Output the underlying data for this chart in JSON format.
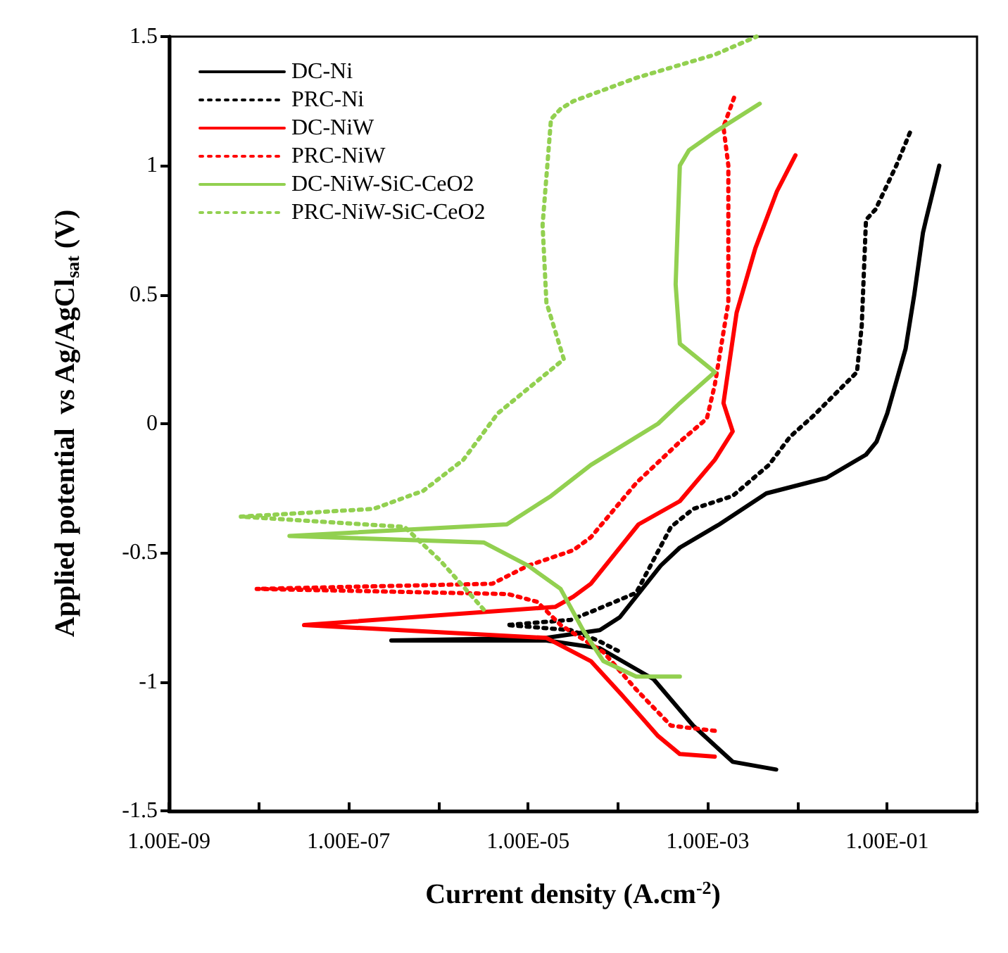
{
  "chart_data": {
    "type": "line",
    "xlabel": "Current density (A.cm$^{-2}$)",
    "ylabel": "Applied potential  vs Ag/AgCl$_{sat}$ (V)",
    "log": "x",
    "xlim": [
      1e-09,
      1
    ],
    "ylim": [
      -1.5,
      1.5
    ],
    "xticks": [
      {
        "value": 1e-09,
        "label": "1.00E-09"
      },
      {
        "value": 1e-08,
        "label": null
      },
      {
        "value": 1e-07,
        "label": "1.00E-07"
      },
      {
        "value": 1e-06,
        "label": null
      },
      {
        "value": 1e-05,
        "label": "1.00E-05"
      },
      {
        "value": 0.0001,
        "label": null
      },
      {
        "value": 0.001,
        "label": "1.00E-03"
      },
      {
        "value": 0.01,
        "label": null
      },
      {
        "value": 0.1,
        "label": "1.00E-01"
      },
      {
        "value": 1,
        "label": null
      }
    ],
    "yticks": [
      -1.5,
      -1,
      -0.5,
      0,
      0.5,
      1,
      1.5
    ],
    "grid": false,
    "legend": "top left",
    "marker": "none",
    "series": [
      {
        "name": "DC-Ni",
        "color": "#000000",
        "line_style": "solid",
        "x": [
          0.0058,
          0.0019,
          0.00069,
          0.00025,
          6.3e-05,
          1.6e-05,
          3e-07,
          1.6e-05,
          6.3e-05,
          0.000105,
          0.0003,
          0.00049,
          0.00135,
          0.0045,
          0.021,
          0.058,
          0.076,
          0.1,
          0.16,
          0.2,
          0.25,
          0.27,
          0.38
        ],
        "values": [
          -1.34,
          -1.31,
          -1.17,
          -0.99,
          -0.87,
          -0.84,
          -0.84,
          -0.83,
          -0.8,
          -0.75,
          -0.55,
          -0.48,
          -0.39,
          -0.27,
          -0.21,
          -0.12,
          -0.07,
          0.04,
          0.29,
          0.5,
          0.74,
          0.79,
          1.0
        ]
      },
      {
        "name": "PRC-Ni",
        "color": "#000000",
        "line_style": "dotted",
        "x": [
          0.0001,
          6e-05,
          3e-05,
          5.8e-06,
          3e-05,
          5.8e-05,
          0.00016,
          0.00039,
          0.00069,
          0.0019,
          0.0048,
          0.0083,
          0.015,
          0.046,
          0.052,
          0.058,
          0.074,
          0.126,
          0.18
        ],
        "values": [
          -0.88,
          -0.84,
          -0.8,
          -0.78,
          -0.76,
          -0.72,
          -0.655,
          -0.4,
          -0.33,
          -0.28,
          -0.16,
          -0.05,
          0.03,
          0.2,
          0.38,
          0.79,
          0.83,
          1.0,
          1.13
        ]
      },
      {
        "name": "DC-NiW",
        "color": "#ff0000",
        "line_style": "solid",
        "x": [
          0.0012,
          0.00049,
          0.00028,
          0.00011,
          5e-05,
          1.6e-05,
          3.2e-08,
          2e-05,
          3.2e-05,
          5e-05,
          0.00017,
          0.00049,
          0.0012,
          0.0019,
          0.0015,
          0.0021,
          0.0034,
          0.0059,
          0.0095
        ],
        "values": [
          -1.29,
          -1.28,
          -1.21,
          -1.05,
          -0.92,
          -0.83,
          -0.78,
          -0.71,
          -0.67,
          -0.62,
          -0.39,
          -0.3,
          -0.14,
          -0.03,
          0.08,
          0.43,
          0.68,
          0.9,
          1.04
        ]
      },
      {
        "name": "PRC-NiW",
        "color": "#ff0000",
        "line_style": "dotted",
        "x": [
          0.0012,
          0.00039,
          0.00016,
          6.9e-05,
          2.3e-05,
          1.26e-05,
          6e-06,
          9.5e-09,
          4e-06,
          1e-05,
          3.2e-05,
          5e-05,
          0.00016,
          0.00049,
          0.00098,
          0.0012,
          0.0017,
          0.0017,
          0.0015,
          0.002
        ],
        "values": [
          -1.19,
          -1.17,
          -1.03,
          -0.885,
          -0.78,
          -0.69,
          -0.66,
          -0.64,
          -0.62,
          -0.55,
          -0.49,
          -0.44,
          -0.23,
          -0.07,
          0.02,
          0.15,
          0.47,
          1.0,
          1.15,
          1.27
        ]
      },
      {
        "name": "DC-NiW-SiC-CeO2",
        "color": "#92d050",
        "line_style": "solid",
        "x": [
          0.00049,
          0.00016,
          6.9e-05,
          4.1e-05,
          2.3e-05,
          1e-05,
          3.2e-06,
          2.2e-08,
          5.8e-06,
          1.8e-05,
          5e-05,
          0.00028,
          0.00049,
          0.0012,
          0.00049,
          0.00044,
          0.00049,
          0.00062,
          0.0012,
          0.0038
        ],
        "values": [
          -0.98,
          -0.98,
          -0.92,
          -0.8,
          -0.64,
          -0.55,
          -0.46,
          -0.435,
          -0.39,
          -0.28,
          -0.16,
          0.0,
          0.08,
          0.2,
          0.31,
          0.54,
          1.0,
          1.06,
          1.13,
          1.24
        ]
      },
      {
        "name": "PRC-NiW-SiC-CeO2",
        "color": "#92d050",
        "line_style": "dotted",
        "x": [
          3.2e-06,
          1.05e-06,
          4.2e-07,
          6.3e-09,
          1.9e-07,
          6.8e-07,
          1.9e-06,
          4.6e-06,
          2.5e-05,
          1.6e-05,
          1.45e-05,
          1.8e-05,
          2.3e-05,
          3.2e-05,
          0.00016,
          0.0012,
          0.0035
        ],
        "values": [
          -0.72,
          -0.53,
          -0.4,
          -0.36,
          -0.33,
          -0.26,
          -0.14,
          0.04,
          0.25,
          0.47,
          0.77,
          1.18,
          1.22,
          1.25,
          1.34,
          1.43,
          1.5
        ]
      }
    ]
  }
}
